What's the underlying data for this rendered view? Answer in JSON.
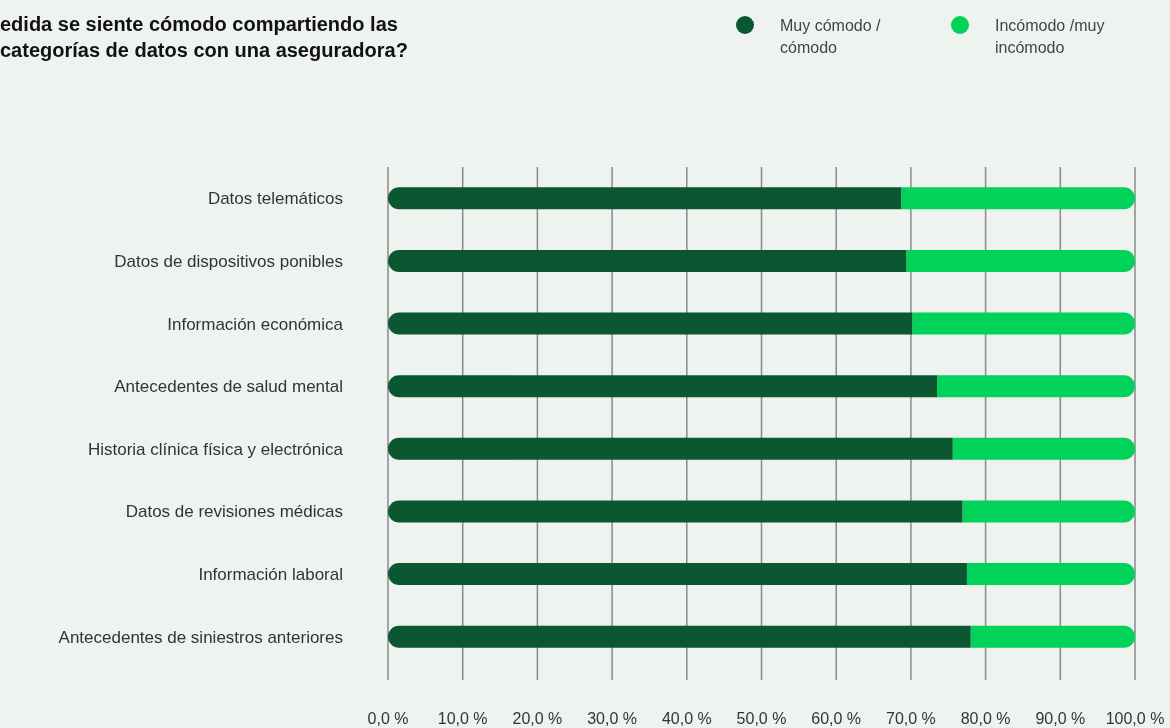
{
  "chart_data": {
    "type": "bar",
    "orientation": "horizontal",
    "stacked": true,
    "title": "edida se siente cómodo compartiendo las\ncategorías de datos con una aseguradora?",
    "categories": [
      "Datos telemáticos",
      "Datos de dispositivos ponibles",
      "Información económica",
      "Antecedentes de salud mental",
      "Historia clínica física y electrónica",
      "Datos de revisiones médicas",
      "Información laboral",
      "Antecedentes de siniestros anteriores"
    ],
    "series": [
      {
        "name": "Muy cómodo / cómodo",
        "color": "#0b5732",
        "values": [
          68.7,
          69.4,
          70.2,
          73.5,
          75.6,
          76.9,
          77.5,
          78.0
        ]
      },
      {
        "name": "Incómodo /muy incómodo",
        "color": "#00d25a",
        "values": [
          31.3,
          30.6,
          29.8,
          26.5,
          24.4,
          23.1,
          22.5,
          22.0
        ]
      }
    ],
    "xlim": [
      0,
      100
    ],
    "xticks": [
      {
        "value": 0,
        "label": "0,0 %"
      },
      {
        "value": 10,
        "label": "10,0 %"
      },
      {
        "value": 20,
        "label": "20,0 %"
      },
      {
        "value": 30,
        "label": "30,0 %"
      },
      {
        "value": 40,
        "label": "40,0 %"
      },
      {
        "value": 50,
        "label": "50,0 %"
      },
      {
        "value": 60,
        "label": "60,0 %"
      },
      {
        "value": 70,
        "label": "70,0 %"
      },
      {
        "value": 80,
        "label": "80,0 %"
      },
      {
        "value": 90,
        "label": "90,0 %"
      },
      {
        "value": 100,
        "label": "100,0 %"
      }
    ],
    "grid": "x",
    "legend": "top right"
  }
}
